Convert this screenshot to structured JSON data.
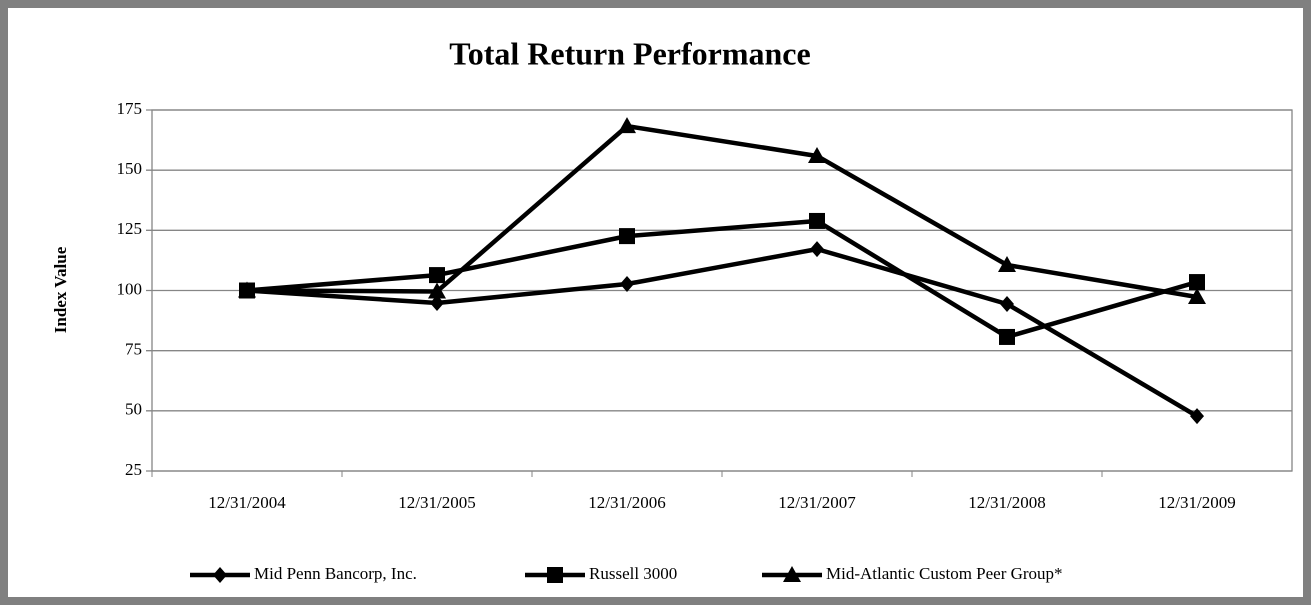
{
  "chart_data": {
    "type": "line",
    "title": "Total Return Performance",
    "y_label": "Index Value",
    "categories": [
      "12/31/2004",
      "12/31/2005",
      "12/31/2006",
      "12/31/2007",
      "12/31/2008",
      "12/31/2009"
    ],
    "series": [
      {
        "name": "Mid Penn Bancorp, Inc.",
        "color": "#000000",
        "marker": "diamond",
        "values": [
          100,
          94.8,
          102.7,
          117.2,
          94.4,
          47.8
        ]
      },
      {
        "name": "Russell 3000",
        "color": "#000000",
        "marker": "square",
        "values": [
          100,
          106.4,
          122.6,
          128.9,
          80.7,
          103.5
        ]
      },
      {
        "name": "Mid-Atlantic Custom Peer Group*",
        "color": "#000000",
        "marker": "triangle",
        "values": [
          100,
          99.6,
          168.3,
          155.9,
          110.6,
          97.3
        ]
      }
    ],
    "ylim": [
      25,
      175
    ],
    "yticks": [
      25,
      50,
      75,
      100,
      125,
      150,
      175
    ],
    "grid": true,
    "legend": "bottom"
  }
}
